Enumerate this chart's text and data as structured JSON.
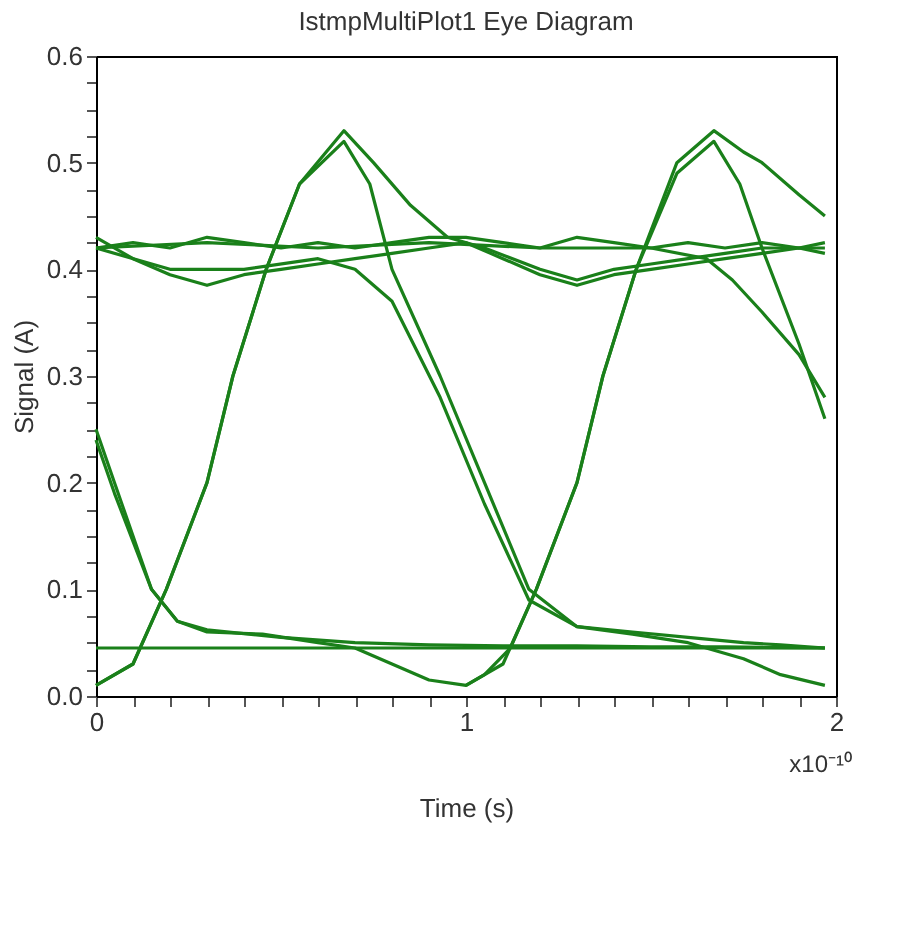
{
  "chart_data": {
    "type": "line",
    "title": "IstmpMultiPlot1 Eye Diagram",
    "xlabel": "Time (s)",
    "ylabel": "Signal (A)",
    "annotations": [
      "x10⁻¹⁰"
    ],
    "xlim": [
      0,
      2
    ],
    "ylim": [
      0,
      0.6
    ],
    "xticks": [
      0,
      {
        "value": 0.1,
        "label": null
      },
      {
        "value": 0.2,
        "label": null
      },
      {
        "value": 0.3,
        "label": null
      },
      {
        "value": 0.4,
        "label": null
      },
      {
        "value": 0.5,
        "label": null
      },
      {
        "value": 0.6,
        "label": null
      },
      {
        "value": 0.7,
        "label": null
      },
      {
        "value": 0.8,
        "label": null
      },
      {
        "value": 0.9,
        "label": null
      },
      1,
      {
        "value": 1.1,
        "label": null
      },
      {
        "value": 1.2,
        "label": null
      },
      {
        "value": 1.3,
        "label": null
      },
      {
        "value": 1.4,
        "label": null
      },
      {
        "value": 1.5,
        "label": null
      },
      {
        "value": 1.6,
        "label": null
      },
      {
        "value": 1.7,
        "label": null
      },
      {
        "value": 1.8,
        "label": null
      },
      {
        "value": 1.9,
        "label": null
      },
      2
    ],
    "yticks": [
      {
        "value": 0,
        "label": "0.0"
      },
      {
        "value": 0.025,
        "label": null
      },
      {
        "value": 0.05,
        "label": null
      },
      {
        "value": 0.075,
        "label": null
      },
      0.1,
      {
        "value": 0.125,
        "label": null
      },
      {
        "value": 0.15,
        "label": null
      },
      {
        "value": 0.175,
        "label": null
      },
      0.2,
      {
        "value": 0.225,
        "label": null
      },
      {
        "value": 0.25,
        "label": null
      },
      {
        "value": 0.275,
        "label": null
      },
      0.3,
      {
        "value": 0.325,
        "label": null
      },
      {
        "value": 0.35,
        "label": null
      },
      {
        "value": 0.375,
        "label": null
      },
      0.4,
      {
        "value": 0.425,
        "label": null
      },
      {
        "value": 0.45,
        "label": null
      },
      {
        "value": 0.475,
        "label": null
      },
      0.5,
      {
        "value": 0.525,
        "label": null
      },
      {
        "value": 0.55,
        "label": null
      },
      {
        "value": 0.575,
        "label": null
      },
      0.6
    ],
    "grid": false,
    "marker": "none",
    "line_style": "solid",
    "series": [
      {
        "color": "#1a801a",
        "x": [
          0,
          0.1,
          0.2,
          0.3,
          0.4,
          0.5,
          0.6,
          0.7,
          0.8,
          0.9,
          1.0,
          1.1,
          1.2,
          1.3,
          1.4,
          1.5,
          1.6,
          1.7,
          1.8,
          1.9,
          1.97
        ],
        "values": [
          0.42,
          0.425,
          0.42,
          0.43,
          0.425,
          0.42,
          0.425,
          0.42,
          0.425,
          0.43,
          0.43,
          0.425,
          0.42,
          0.43,
          0.425,
          0.42,
          0.425,
          0.42,
          0.425,
          0.42,
          0.425
        ]
      },
      {
        "color": "#1a801a",
        "x": [
          0,
          0.1,
          0.2,
          0.3,
          0.4,
          0.5,
          0.6,
          0.7,
          0.8,
          0.9,
          1.0,
          1.1,
          1.2,
          1.3,
          1.4,
          1.5,
          1.6,
          1.7,
          1.8,
          1.9,
          1.97
        ],
        "values": [
          0.43,
          0.41,
          0.395,
          0.385,
          0.395,
          0.4,
          0.405,
          0.41,
          0.415,
          0.42,
          0.425,
          0.41,
          0.395,
          0.385,
          0.395,
          0.4,
          0.405,
          0.41,
          0.415,
          0.42,
          0.415
        ]
      },
      {
        "color": "#1a801a",
        "x": [
          0,
          0.1,
          0.19,
          0.3,
          0.37,
          0.46,
          0.55,
          0.67,
          0.75,
          0.85,
          0.95,
          1.05,
          1.2,
          1.3,
          1.4,
          1.5,
          1.6,
          1.7,
          1.8,
          1.9,
          1.97
        ],
        "values": [
          0.01,
          0.03,
          0.1,
          0.2,
          0.3,
          0.4,
          0.48,
          0.53,
          0.5,
          0.46,
          0.43,
          0.42,
          0.4,
          0.39,
          0.4,
          0.405,
          0.41,
          0.415,
          0.42,
          0.42,
          0.42
        ]
      },
      {
        "color": "#1a801a",
        "x": [
          0,
          0.1,
          0.19,
          0.3,
          0.37,
          0.46,
          0.55,
          0.67,
          0.74,
          0.8,
          0.93,
          1.05,
          1.17,
          1.3,
          1.45,
          1.6,
          1.75,
          1.85,
          1.97
        ],
        "values": [
          0.01,
          0.03,
          0.1,
          0.2,
          0.3,
          0.4,
          0.48,
          0.52,
          0.48,
          0.4,
          0.3,
          0.2,
          0.1,
          0.065,
          0.06,
          0.055,
          0.05,
          0.048,
          0.045
        ]
      },
      {
        "color": "#1a801a",
        "x": [
          0,
          0.2,
          0.4,
          0.6,
          0.7,
          0.8,
          0.93,
          1.05,
          1.17,
          1.3,
          1.45,
          1.6,
          1.75,
          1.85,
          1.97
        ],
        "values": [
          0.42,
          0.4,
          0.4,
          0.41,
          0.4,
          0.37,
          0.28,
          0.18,
          0.09,
          0.065,
          0.058,
          0.05,
          0.035,
          0.02,
          0.01
        ]
      },
      {
        "color": "#1a801a",
        "x": [
          0,
          0.05,
          0.15,
          0.22,
          0.3,
          0.45,
          0.6,
          0.7,
          0.8,
          0.9,
          1.0,
          1.05,
          1.12,
          1.19,
          1.3,
          1.37,
          1.46,
          1.57,
          1.67,
          1.75,
          1.8,
          1.9,
          1.97
        ],
        "values": [
          0.25,
          0.2,
          0.1,
          0.07,
          0.06,
          0.058,
          0.05,
          0.045,
          0.03,
          0.015,
          0.01,
          0.02,
          0.045,
          0.1,
          0.2,
          0.3,
          0.4,
          0.5,
          0.53,
          0.51,
          0.5,
          0.47,
          0.45
        ]
      },
      {
        "color": "#1a801a",
        "x": [
          0,
          1,
          1.97
        ],
        "values": [
          0.045,
          0.045,
          0.045
        ]
      },
      {
        "color": "#1a801a",
        "x": [
          0,
          0.05,
          0.15,
          0.22,
          0.3,
          0.5,
          0.7,
          0.9,
          1.1,
          1.3,
          1.5,
          1.7,
          1.97
        ],
        "values": [
          0.24,
          0.19,
          0.1,
          0.07,
          0.062,
          0.055,
          0.05,
          0.048,
          0.047,
          0.047,
          0.046,
          0.046,
          0.045
        ]
      },
      {
        "color": "#1a801a",
        "x": [
          0,
          0.3,
          0.6,
          0.9,
          1.2,
          1.5,
          1.65,
          1.72,
          1.8,
          1.9,
          1.97
        ],
        "values": [
          0.42,
          0.425,
          0.42,
          0.425,
          0.42,
          0.42,
          0.41,
          0.39,
          0.36,
          0.32,
          0.28
        ]
      },
      {
        "color": "#1a801a",
        "x": [
          1.0,
          1.1,
          1.19,
          1.3,
          1.37,
          1.46,
          1.57,
          1.67,
          1.74,
          1.8,
          1.9,
          1.97
        ],
        "values": [
          0.01,
          0.03,
          0.1,
          0.2,
          0.3,
          0.4,
          0.49,
          0.52,
          0.48,
          0.42,
          0.33,
          0.26
        ]
      }
    ]
  }
}
